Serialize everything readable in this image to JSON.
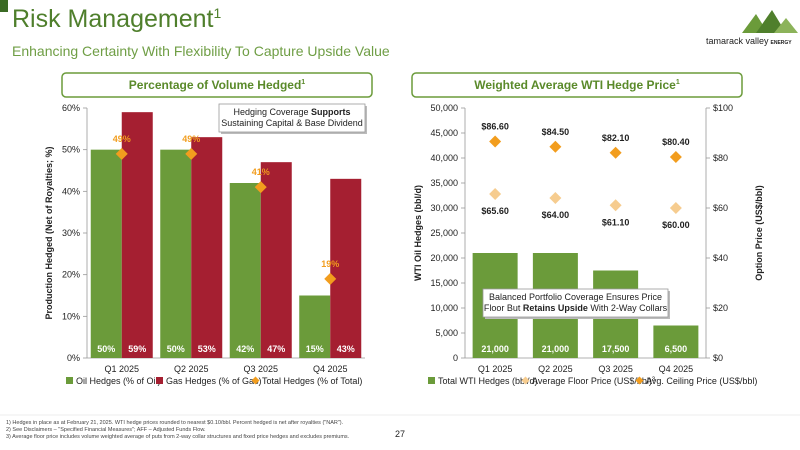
{
  "header": {
    "title": "Risk Management",
    "title_note": "1",
    "subtitle": "Enhancing Certainty With Flexibility To Capture Upside Value",
    "logo_name": "tamarack valley",
    "logo_sub": "ENERGY"
  },
  "chart_data": [
    {
      "type": "bar",
      "title": "Percentage of Volume Hedged",
      "title_note": "1",
      "y_label": "Production Hedged (Net of Royalties; %)",
      "categories": [
        "Q1 2025",
        "Q2 2025",
        "Q3 2025",
        "Q4 2025"
      ],
      "ylim": [
        0,
        60
      ],
      "yticks": [
        {
          "value": 0,
          "label": "0%"
        },
        {
          "value": 10,
          "label": "10%"
        },
        {
          "value": 20,
          "label": "20%"
        },
        {
          "value": 30,
          "label": "30%"
        },
        {
          "value": 40,
          "label": "40%"
        },
        {
          "value": 50,
          "label": "50%"
        },
        {
          "value": 60,
          "label": "60%"
        }
      ],
      "grid": false,
      "series": [
        {
          "name": "Oil Hedges (% of Oil)",
          "type": "bar",
          "color": "#6b9b3a",
          "values": [
            50,
            50,
            42,
            15
          ],
          "value_labels": [
            "50%",
            "50%",
            "42%",
            "15%"
          ]
        },
        {
          "name": "Gas Hedges (% of Gas)",
          "type": "bar",
          "color": "#a51f31",
          "values": [
            59,
            53,
            47,
            43
          ],
          "value_labels": [
            "59%",
            "53%",
            "47%",
            "43%"
          ]
        },
        {
          "name": "Total Hedges (% of Total)",
          "type": "scatter",
          "marker": "diamond",
          "color": "#f29d1e",
          "label_position": "above",
          "values": [
            49,
            49,
            41,
            19
          ],
          "value_labels": [
            "49%",
            "49%",
            "41%",
            "19%"
          ]
        }
      ],
      "annotation": [
        [
          {
            "text": "Hedging Coverage "
          },
          {
            "text": "Supports",
            "bold": true
          }
        ],
        [
          {
            "text": "Sustaining Capital & Base Dividend"
          }
        ]
      ]
    },
    {
      "type": "bar",
      "title": "Weighted Average WTI Hedge Price",
      "title_note": "1",
      "y_label": "WTI Oil Hedges (bbl/d)",
      "y2_label": "Option Price (US$/bbl)",
      "categories": [
        "Q1 2025",
        "Q2 2025",
        "Q3 2025",
        "Q4 2025"
      ],
      "ylim": [
        0,
        50000
      ],
      "yticks": [
        0,
        {
          "value": 5000,
          "label": "5,000"
        },
        {
          "value": 10000,
          "label": "10,000"
        },
        {
          "value": 15000,
          "label": "15,000"
        },
        {
          "value": 20000,
          "label": "20,000"
        },
        {
          "value": 25000,
          "label": "25,000"
        },
        {
          "value": 30000,
          "label": "30,000"
        },
        {
          "value": 35000,
          "label": "35,000"
        },
        {
          "value": 40000,
          "label": "40,000"
        },
        {
          "value": 45000,
          "label": "45,000"
        },
        {
          "value": 50000,
          "label": "50,000"
        }
      ],
      "y2lim": [
        0,
        100
      ],
      "y2ticks": [
        {
          "value": 0,
          "label": "$0"
        },
        {
          "value": 20,
          "label": "$20"
        },
        {
          "value": 40,
          "label": "$40"
        },
        {
          "value": 60,
          "label": "$60"
        },
        {
          "value": 80,
          "label": "$80"
        },
        {
          "value": 100,
          "label": "$100"
        }
      ],
      "grid": false,
      "series": [
        {
          "name": "Total WTI Hedges (bbl/d)",
          "type": "bar",
          "color": "#6b9b3a",
          "values": [
            21000,
            21000,
            17500,
            6500
          ],
          "value_labels": [
            "21,000",
            "21,000",
            "17,500",
            "6,500"
          ]
        },
        {
          "name": "Average Floor Price (US$/bbl)",
          "name_note": "3",
          "type": "scatter",
          "marker": "diamond",
          "axis": "y2",
          "color": "#f6cc8f",
          "label_position": "below",
          "values": [
            65.6,
            64.0,
            61.1,
            60.0
          ],
          "value_labels": [
            "$65.60",
            "$64.00",
            "$61.10",
            "$60.00"
          ]
        },
        {
          "name": "Avg. Ceiling Price (US$/bbl)",
          "type": "scatter",
          "marker": "diamond",
          "axis": "y2",
          "color": "#f29d1e",
          "label_position": "above",
          "values": [
            86.6,
            84.5,
            82.1,
            80.4
          ],
          "value_labels": [
            "$86.60",
            "$84.50",
            "$82.10",
            "$80.40"
          ]
        }
      ],
      "annotation": [
        [
          {
            "text": "Balanced Portfolio Coverage Ensures Price"
          }
        ],
        [
          {
            "text": "Floor But "
          },
          {
            "text": "Retains Upside",
            "bold": true
          },
          {
            "text": " With 2-Way Collars"
          }
        ]
      ]
    }
  ],
  "footnotes": [
    "1) Hedges in place as at February 21, 2025. WTI hedge prices rounded to nearest $0.10/bbl. Percent hedged is net after royalties (\"NAR\").",
    "2) See Disclaimers – \"Specified Financial Measures\"; AFF – Adjusted Funds Flow.",
    "3) Average floor price includes volume weighted average of puts from 2-way collar structures and fixed price hedges and excludes premiums."
  ],
  "page_number": "27"
}
